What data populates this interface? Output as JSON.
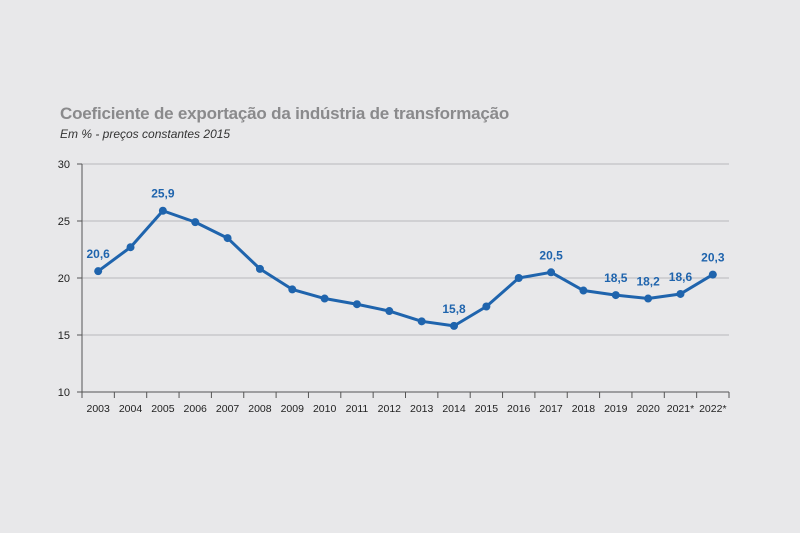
{
  "chart_data": {
    "type": "line",
    "title": "Coeficiente de exportação da indústria de transformação",
    "subtitle": "Em % - preços constantes 2015",
    "categories": [
      "2003",
      "2004",
      "2005",
      "2006",
      "2007",
      "2008",
      "2009",
      "2010",
      "2011",
      "2012",
      "2013",
      "2014",
      "2015",
      "2016",
      "2017",
      "2018",
      "2019",
      "2020",
      "2021*",
      "2022*"
    ],
    "values": [
      20.6,
      22.7,
      25.9,
      24.9,
      23.5,
      20.8,
      19.0,
      18.2,
      17.7,
      17.1,
      16.2,
      15.8,
      17.5,
      20.0,
      20.5,
      18.9,
      18.5,
      18.2,
      18.6,
      20.3
    ],
    "data_labels": {
      "0": "20,6",
      "2": "25,9",
      "11": "15,8",
      "14": "20,5",
      "16": "18,5",
      "17": "18,2",
      "18": "18,6",
      "19": "20,3"
    },
    "ylim": [
      10,
      30
    ],
    "yticks": [
      10,
      15,
      20,
      25,
      30
    ],
    "grid": true,
    "line_color": "#1f64ad"
  }
}
